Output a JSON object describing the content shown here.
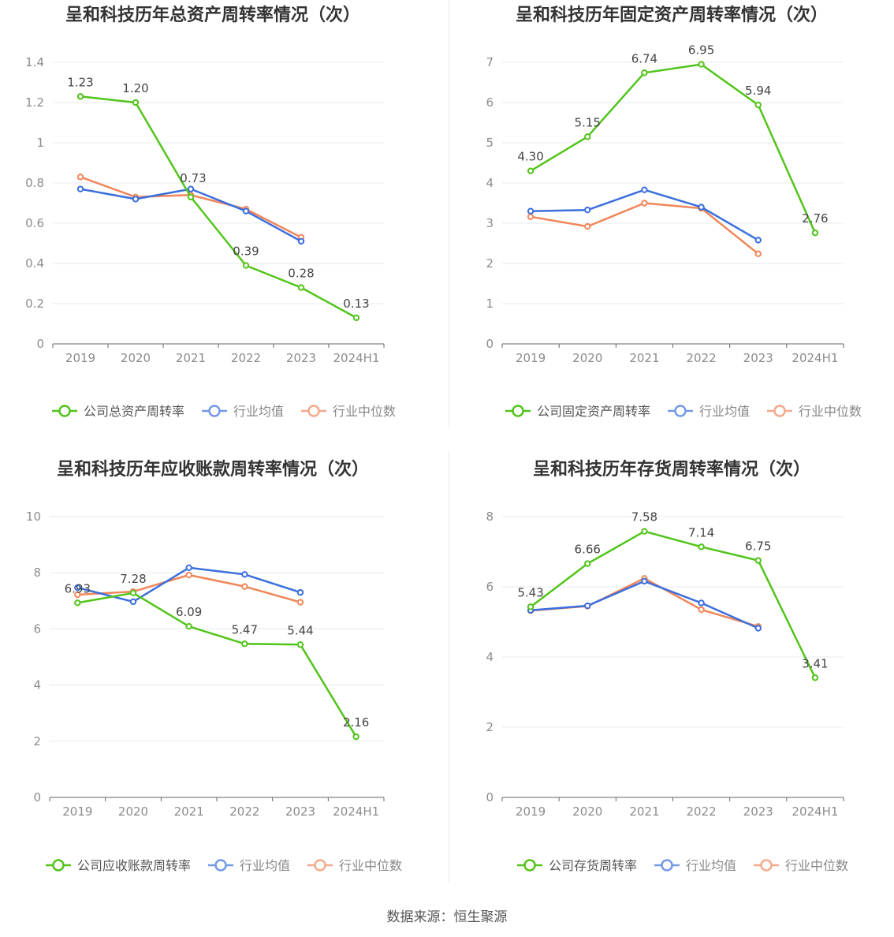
{
  "source_text": "数据来源：恒生聚源",
  "colors": {
    "company": "#52c41a",
    "industry_mean": "#3b6fdd",
    "industry_median": "#f08659",
    "grid": "#e6e9f2",
    "axis": "#666666",
    "tick_text": "#8c8c8c",
    "title": "#333333",
    "label": "#444444"
  },
  "chart_data": [
    {
      "type": "line",
      "title": "呈和科技历年总资产周转率情况（次）",
      "categories": [
        "2019",
        "2020",
        "2021",
        "2022",
        "2023",
        "2024H1"
      ],
      "ylim": [
        0,
        1.4
      ],
      "yticks": [
        "0",
        "0.2",
        "0.4",
        "0.6",
        "0.8",
        "1",
        "1.2",
        "1.4"
      ],
      "legend_position": "bottom",
      "series": [
        {
          "name": "公司总资产周转率",
          "key": "company",
          "values": [
            1.23,
            1.2,
            0.73,
            0.39,
            0.28,
            0.13
          ],
          "labels": [
            "1.23",
            "1.20",
            "0.73",
            "0.39",
            "0.28",
            "0.13"
          ]
        },
        {
          "name": "行业均值",
          "key": "industry_mean",
          "values": [
            0.77,
            0.72,
            0.77,
            0.66,
            0.51,
            null
          ]
        },
        {
          "name": "行业中位数",
          "key": "industry_median",
          "values": [
            0.83,
            0.73,
            0.74,
            0.67,
            0.53,
            null
          ]
        }
      ]
    },
    {
      "type": "line",
      "title": "呈和科技历年固定资产周转率情况（次）",
      "categories": [
        "2019",
        "2020",
        "2021",
        "2022",
        "2023",
        "2024H1"
      ],
      "ylim": [
        0,
        7
      ],
      "yticks": [
        "0",
        "1",
        "2",
        "3",
        "4",
        "5",
        "6",
        "7"
      ],
      "legend_position": "bottom",
      "series": [
        {
          "name": "公司固定资产周转率",
          "key": "company",
          "values": [
            4.3,
            5.15,
            6.74,
            6.95,
            5.94,
            2.76
          ],
          "labels": [
            "4.30",
            "5.15",
            "6.74",
            "6.95",
            "5.94",
            "2.76"
          ]
        },
        {
          "name": "行业均值",
          "key": "industry_mean",
          "values": [
            3.3,
            3.33,
            3.83,
            3.4,
            2.58,
            null
          ]
        },
        {
          "name": "行业中位数",
          "key": "industry_median",
          "values": [
            3.16,
            2.92,
            3.5,
            3.37,
            2.24,
            null
          ]
        }
      ]
    },
    {
      "type": "line",
      "title": "呈和科技历年应收账款周转率情况（次）",
      "categories": [
        "2019",
        "2020",
        "2021",
        "2022",
        "2023",
        "2024H1"
      ],
      "ylim": [
        0,
        10
      ],
      "yticks": [
        "0",
        "2",
        "4",
        "6",
        "8",
        "10"
      ],
      "legend_position": "bottom",
      "series": [
        {
          "name": "公司应收账款周转率",
          "key": "company",
          "values": [
            6.93,
            7.28,
            6.09,
            5.47,
            5.44,
            2.16
          ],
          "labels": [
            "6.93",
            "7.28",
            "6.09",
            "5.47",
            "5.44",
            "2.16"
          ]
        },
        {
          "name": "行业均值",
          "key": "industry_mean",
          "values": [
            7.47,
            6.97,
            8.18,
            7.94,
            7.3,
            null
          ]
        },
        {
          "name": "行业中位数",
          "key": "industry_median",
          "values": [
            7.22,
            7.33,
            7.92,
            7.51,
            6.95,
            null
          ]
        }
      ]
    },
    {
      "type": "line",
      "title": "呈和科技历年存货周转率情况（次）",
      "categories": [
        "2019",
        "2020",
        "2021",
        "2022",
        "2023",
        "2024H1"
      ],
      "ylim": [
        0,
        8
      ],
      "yticks": [
        "0",
        "2",
        "4",
        "6",
        "8"
      ],
      "legend_position": "bottom",
      "series": [
        {
          "name": "公司存货周转率",
          "key": "company",
          "values": [
            5.43,
            6.66,
            7.58,
            7.14,
            6.75,
            3.41
          ],
          "labels": [
            "5.43",
            "6.66",
            "7.58",
            "7.14",
            "6.75",
            "3.41"
          ]
        },
        {
          "name": "行业均值",
          "key": "industry_mean",
          "values": [
            5.33,
            5.46,
            6.16,
            5.54,
            4.82,
            null
          ]
        },
        {
          "name": "行业中位数",
          "key": "industry_median",
          "values": [
            5.32,
            5.45,
            6.24,
            5.35,
            4.87,
            null
          ]
        }
      ]
    }
  ]
}
